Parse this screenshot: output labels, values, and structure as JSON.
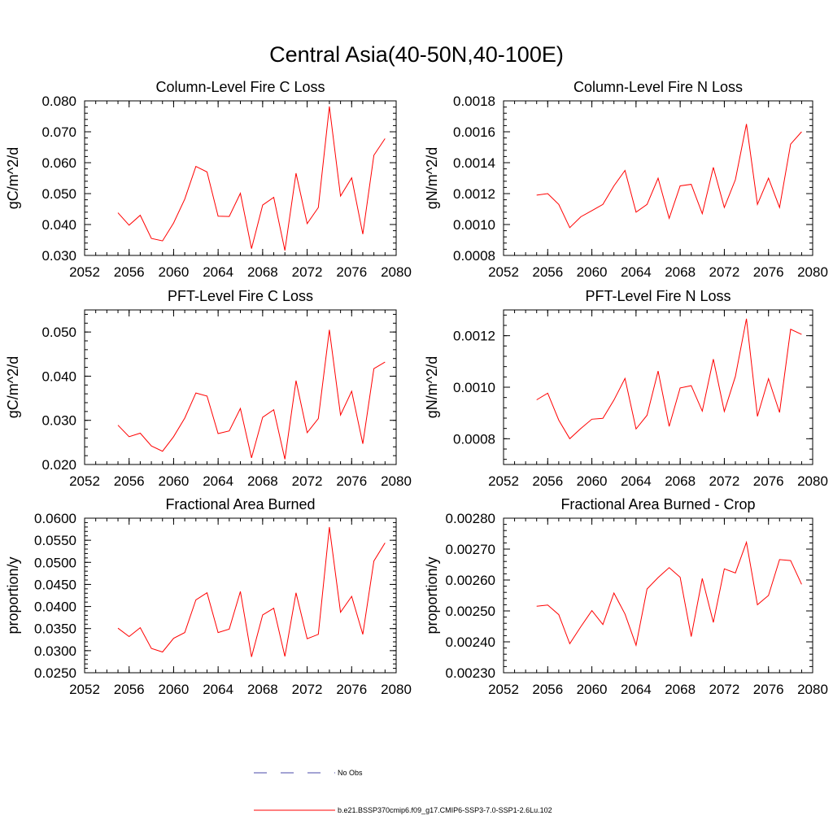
{
  "title": "Central Asia(40-50N,40-100E)",
  "legend": {
    "entries": [
      {
        "label": "No Obs",
        "color": "#4a4aa8",
        "style": "dashed"
      },
      {
        "label": "b.e21.BSSP370cmip6.f09_g17.CMIP6-SSP3-7.0-SSP1-2.6Lu.102",
        "color": "#ff0000",
        "style": "solid"
      }
    ]
  },
  "chart_data": [
    {
      "type": "line",
      "title": "Column-Level Fire C Loss",
      "ylabel": "gC/m^2/d",
      "xlim": [
        2052,
        2080
      ],
      "ylim": [
        0.03,
        0.08
      ],
      "x_ticks": [
        "2052",
        "2056",
        "2060",
        "2064",
        "2068",
        "2072",
        "2076",
        "2080"
      ],
      "y_ticks": [
        "0.030",
        "0.040",
        "0.050",
        "0.060",
        "0.070",
        "0.080"
      ],
      "x": [
        2055,
        2056,
        2057,
        2058,
        2059,
        2060,
        2061,
        2062,
        2063,
        2064,
        2065,
        2066,
        2067,
        2068,
        2069,
        2070,
        2071,
        2072,
        2073,
        2074,
        2075,
        2076,
        2077,
        2078,
        2079
      ],
      "series": [
        {
          "color": "#ff0000",
          "values": [
            0.0438,
            0.0398,
            0.043,
            0.0355,
            0.0347,
            0.0405,
            0.0482,
            0.0588,
            0.057,
            0.0427,
            0.0426,
            0.0501,
            0.0322,
            0.0463,
            0.0488,
            0.0316,
            0.0566,
            0.0403,
            0.0455,
            0.0782,
            0.0492,
            0.0551,
            0.0369,
            0.0624,
            0.0678
          ]
        }
      ]
    },
    {
      "type": "line",
      "title": "Column-Level Fire N Loss",
      "ylabel": "gN/m^2/d",
      "xlim": [
        2052,
        2080
      ],
      "ylim": [
        0.0008,
        0.0018
      ],
      "x_ticks": [
        "2052",
        "2056",
        "2060",
        "2064",
        "2068",
        "2072",
        "2076",
        "2080"
      ],
      "y_ticks": [
        "0.0008",
        "0.0010",
        "0.0012",
        "0.0014",
        "0.0016",
        "0.0018"
      ],
      "x": [
        2055,
        2056,
        2057,
        2058,
        2059,
        2060,
        2061,
        2062,
        2063,
        2064,
        2065,
        2066,
        2067,
        2068,
        2069,
        2070,
        2071,
        2072,
        2073,
        2074,
        2075,
        2076,
        2077,
        2078,
        2079
      ],
      "series": [
        {
          "color": "#ff0000",
          "values": [
            0.00119,
            0.0012,
            0.00113,
            0.00098,
            0.00105,
            0.00109,
            0.00113,
            0.00125,
            0.00135,
            0.00108,
            0.00113,
            0.0013,
            0.00104,
            0.00125,
            0.00126,
            0.00107,
            0.00137,
            0.00111,
            0.00129,
            0.00165,
            0.00113,
            0.0013,
            0.00111,
            0.00152,
            0.0016
          ]
        }
      ]
    },
    {
      "type": "line",
      "title": "PFT-Level Fire C Loss",
      "ylabel": "gC/m^2/d",
      "xlim": [
        2052,
        2080
      ],
      "ylim": [
        0.02,
        0.055
      ],
      "x_ticks": [
        "2052",
        "2056",
        "2060",
        "2064",
        "2068",
        "2072",
        "2076",
        "2080"
      ],
      "y_ticks": [
        "0.020",
        "0.030",
        "0.040",
        "0.050"
      ],
      "x": [
        2055,
        2056,
        2057,
        2058,
        2059,
        2060,
        2061,
        2062,
        2063,
        2064,
        2065,
        2066,
        2067,
        2068,
        2069,
        2070,
        2071,
        2072,
        2073,
        2074,
        2075,
        2076,
        2077,
        2078,
        2079
      ],
      "series": [
        {
          "color": "#ff0000",
          "values": [
            0.0289,
            0.0263,
            0.0271,
            0.0242,
            0.023,
            0.0263,
            0.0305,
            0.0362,
            0.0355,
            0.027,
            0.0276,
            0.0327,
            0.0215,
            0.0307,
            0.0324,
            0.0212,
            0.039,
            0.0272,
            0.0304,
            0.0505,
            0.0312,
            0.0366,
            0.0247,
            0.0417,
            0.0432
          ]
        }
      ]
    },
    {
      "type": "line",
      "title": "PFT-Level Fire N Loss",
      "ylabel": "gN/m^2/d",
      "xlim": [
        2052,
        2080
      ],
      "ylim": [
        0.0007,
        0.0013
      ],
      "x_ticks": [
        "2052",
        "2056",
        "2060",
        "2064",
        "2068",
        "2072",
        "2076",
        "2080"
      ],
      "y_ticks": [
        "0.0008",
        "0.0010",
        "0.0012"
      ],
      "x": [
        2055,
        2056,
        2057,
        2058,
        2059,
        2060,
        2061,
        2062,
        2063,
        2064,
        2065,
        2066,
        2067,
        2068,
        2069,
        2070,
        2071,
        2072,
        2073,
        2074,
        2075,
        2076,
        2077,
        2078,
        2079
      ],
      "series": [
        {
          "color": "#ff0000",
          "values": [
            0.000951,
            0.000977,
            0.000872,
            0.0008,
            0.00084,
            0.000876,
            0.000879,
            0.00095,
            0.001034,
            0.000838,
            0.000891,
            0.001063,
            0.000848,
            0.000997,
            0.001006,
            0.000907,
            0.001109,
            0.000906,
            0.001042,
            0.001266,
            0.000887,
            0.001033,
            0.000902,
            0.001225,
            0.001205
          ]
        }
      ]
    },
    {
      "type": "line",
      "title": "Fractional Area Burned",
      "ylabel": "proportion/y",
      "xlim": [
        2052,
        2080
      ],
      "ylim": [
        0.025,
        0.06
      ],
      "x_ticks": [
        "2052",
        "2056",
        "2060",
        "2064",
        "2068",
        "2072",
        "2076",
        "2080"
      ],
      "y_ticks": [
        "0.0250",
        "0.0300",
        "0.0350",
        "0.0400",
        "0.0450",
        "0.0500",
        "0.0550",
        "0.0600"
      ],
      "x": [
        2055,
        2056,
        2057,
        2058,
        2059,
        2060,
        2061,
        2062,
        2063,
        2064,
        2065,
        2066,
        2067,
        2068,
        2069,
        2070,
        2071,
        2072,
        2073,
        2074,
        2075,
        2076,
        2077,
        2078,
        2079
      ],
      "series": [
        {
          "color": "#ff0000",
          "values": [
            0.0351,
            0.0332,
            0.0352,
            0.0305,
            0.0297,
            0.0328,
            0.0341,
            0.0415,
            0.0431,
            0.0341,
            0.0349,
            0.0434,
            0.0286,
            0.0381,
            0.0396,
            0.0287,
            0.0431,
            0.0327,
            0.0337,
            0.058,
            0.0387,
            0.0423,
            0.0337,
            0.0503,
            0.0544
          ]
        }
      ]
    },
    {
      "type": "line",
      "title": "Fractional Area Burned - Crop",
      "ylabel": "proportion/y",
      "xlim": [
        2052,
        2080
      ],
      "ylim": [
        0.0023,
        0.0028
      ],
      "x_ticks": [
        "2052",
        "2056",
        "2060",
        "2064",
        "2068",
        "2072",
        "2076",
        "2080"
      ],
      "y_ticks": [
        "0.00230",
        "0.00240",
        "0.00250",
        "0.00260",
        "0.00270",
        "0.00280"
      ],
      "x": [
        2055,
        2056,
        2057,
        2058,
        2059,
        2060,
        2061,
        2062,
        2063,
        2064,
        2065,
        2066,
        2067,
        2068,
        2069,
        2070,
        2071,
        2072,
        2073,
        2074,
        2075,
        2076,
        2077,
        2078,
        2079
      ],
      "series": [
        {
          "color": "#ff0000",
          "values": [
            0.002515,
            0.002519,
            0.002488,
            0.002394,
            0.002449,
            0.002501,
            0.002456,
            0.002558,
            0.00249,
            0.002389,
            0.002571,
            0.002608,
            0.00264,
            0.002609,
            0.002417,
            0.002605,
            0.002463,
            0.002636,
            0.002623,
            0.002722,
            0.00252,
            0.00255,
            0.002666,
            0.002663,
            0.002586
          ]
        }
      ]
    }
  ]
}
